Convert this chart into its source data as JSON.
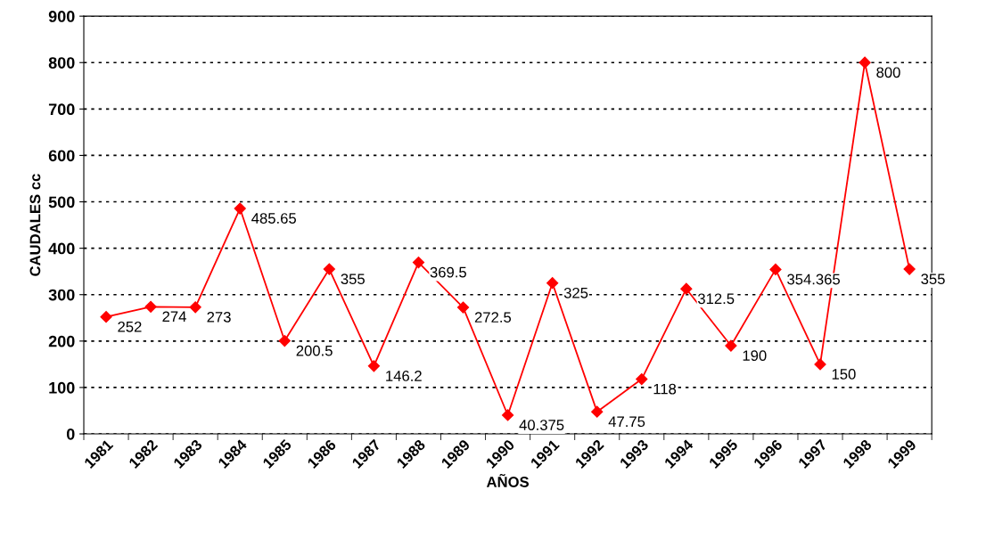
{
  "chart_data": {
    "type": "line",
    "xlabel": "AÑOS",
    "ylabel": "CAUDALES cc",
    "categories": [
      "1981",
      "1982",
      "1983",
      "1984",
      "1985",
      "1986",
      "1987",
      "1988",
      "1989",
      "1990",
      "1991",
      "1992",
      "1993",
      "1994",
      "1995",
      "1996",
      "1997",
      "1998",
      "1999"
    ],
    "series": [
      {
        "color": "#ff0000",
        "values": [
          252,
          274,
          273,
          485.65,
          200.5,
          355,
          146.2,
          369.5,
          272.5,
          40.375,
          325,
          47.75,
          118,
          312.5,
          190,
          354.365,
          150,
          800,
          355
        ]
      }
    ],
    "ylim": [
      0,
      900
    ],
    "yticks": [
      0,
      100,
      200,
      300,
      400,
      500,
      600,
      700,
      800,
      900
    ],
    "grid": "y",
    "marker": "diamond",
    "line_style": "solid",
    "data_labels": true
  }
}
